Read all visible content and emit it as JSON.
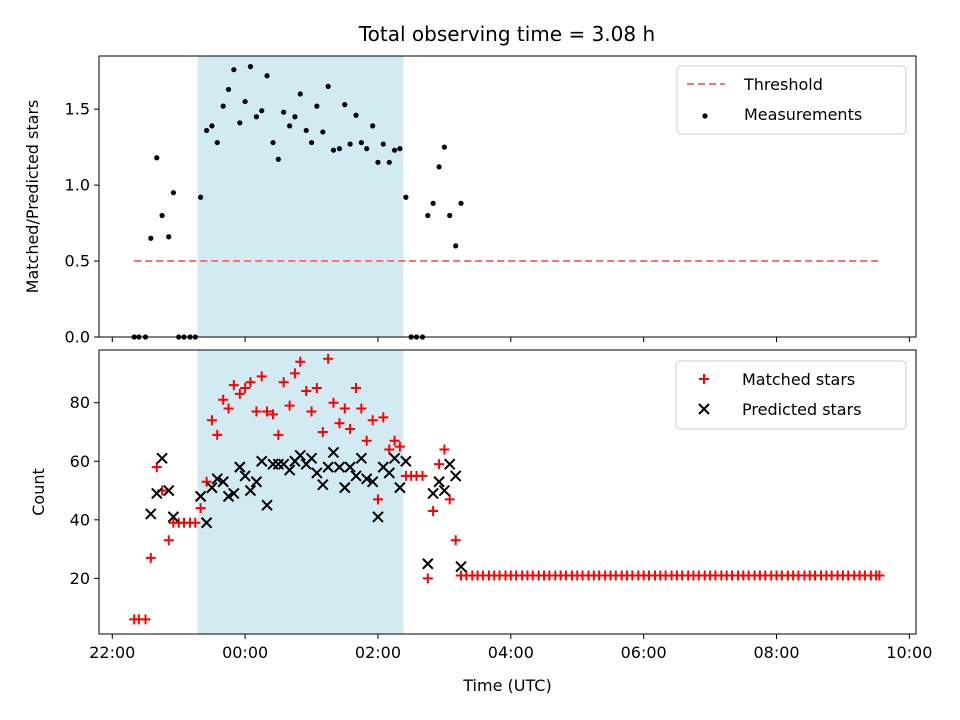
{
  "figure_title": "Total observing time = 3.08 h",
  "colors": {
    "shade": "#add8e6",
    "threshold": "#ff6f6f",
    "measurements": "#000000",
    "matched": "#ff0000",
    "predicted": "#000000"
  },
  "chart_data": [
    {
      "type": "scatter",
      "title": "Total observing time = 3.08 h",
      "xlabel": "",
      "ylabel": "Matched/Predicted stars",
      "x_unit": "hours since 22:00 UTC",
      "xlim": [
        -0.2,
        12.1
      ],
      "ylim": [
        0,
        1.85
      ],
      "yticks": [
        0.0,
        0.5,
        1.0,
        1.5
      ],
      "ytick_labels": [
        "0.0",
        "0.5",
        "1.0",
        "1.5"
      ],
      "grid": false,
      "legend": "top-right",
      "shaded_span": {
        "start": "23:17",
        "end": "02:23"
      },
      "series": [
        {
          "name": "Threshold",
          "style": "dashed-line",
          "x": [
            0.33,
            11.55
          ],
          "y": [
            0.5,
            0.5
          ]
        },
        {
          "name": "Measurements",
          "style": "dot",
          "points": [
            [
              0.33,
              0
            ],
            [
              0.4,
              0
            ],
            [
              0.5,
              0
            ],
            [
              0.58,
              0.65
            ],
            [
              0.67,
              1.18
            ],
            [
              0.75,
              0.8
            ],
            [
              0.85,
              0.66
            ],
            [
              0.92,
              0.95
            ],
            [
              1.0,
              0
            ],
            [
              1.08,
              0
            ],
            [
              1.17,
              0
            ],
            [
              1.25,
              0
            ],
            [
              1.33,
              0.92
            ],
            [
              1.42,
              1.36
            ],
            [
              1.5,
              1.39
            ],
            [
              1.58,
              1.28
            ],
            [
              1.67,
              1.52
            ],
            [
              1.75,
              1.63
            ],
            [
              1.83,
              1.76
            ],
            [
              1.92,
              1.41
            ],
            [
              2.0,
              1.55
            ],
            [
              2.08,
              1.78
            ],
            [
              2.17,
              1.45
            ],
            [
              2.25,
              1.49
            ],
            [
              2.33,
              1.72
            ],
            [
              2.42,
              1.28
            ],
            [
              2.5,
              1.17
            ],
            [
              2.58,
              1.48
            ],
            [
              2.67,
              1.39
            ],
            [
              2.75,
              1.45
            ],
            [
              2.83,
              1.6
            ],
            [
              2.92,
              1.36
            ],
            [
              3.0,
              1.28
            ],
            [
              3.08,
              1.52
            ],
            [
              3.17,
              1.35
            ],
            [
              3.25,
              1.65
            ],
            [
              3.33,
              1.23
            ],
            [
              3.42,
              1.24
            ],
            [
              3.5,
              1.53
            ],
            [
              3.58,
              1.27
            ],
            [
              3.67,
              1.46
            ],
            [
              3.75,
              1.28
            ],
            [
              3.83,
              1.24
            ],
            [
              3.92,
              1.39
            ],
            [
              4.0,
              1.15
            ],
            [
              4.08,
              1.27
            ],
            [
              4.17,
              1.15
            ],
            [
              4.25,
              1.23
            ],
            [
              4.33,
              1.24
            ],
            [
              4.42,
              0.92
            ],
            [
              4.5,
              0
            ],
            [
              4.58,
              0
            ],
            [
              4.67,
              0
            ],
            [
              4.75,
              0.8
            ],
            [
              4.83,
              0.88
            ],
            [
              4.92,
              1.12
            ],
            [
              5.0,
              1.25
            ],
            [
              5.08,
              0.8
            ],
            [
              5.17,
              0.6
            ],
            [
              5.25,
              0.88
            ]
          ]
        }
      ]
    },
    {
      "type": "scatter",
      "title": "",
      "xlabel": "Time (UTC)",
      "ylabel": "Count",
      "x_unit": "hours since 22:00 UTC",
      "xlim": [
        -0.2,
        12.1
      ],
      "ylim": [
        1,
        98
      ],
      "yticks": [
        20,
        40,
        60,
        80
      ],
      "ytick_labels": [
        "20",
        "40",
        "60",
        "80"
      ],
      "xtick_labels": [
        "22:00",
        "00:00",
        "02:00",
        "04:00",
        "06:00",
        "08:00",
        "10:00"
      ],
      "grid": false,
      "legend": "top-right",
      "shaded_span": {
        "start": "23:17",
        "end": "02:23"
      },
      "series": [
        {
          "name": "Matched stars",
          "marker": "plus",
          "points": [
            [
              0.33,
              6
            ],
            [
              0.4,
              6
            ],
            [
              0.5,
              6
            ],
            [
              0.58,
              27
            ],
            [
              0.67,
              58
            ],
            [
              0.75,
              50
            ],
            [
              0.85,
              33
            ],
            [
              0.92,
              39
            ],
            [
              1.0,
              39
            ],
            [
              1.08,
              39
            ],
            [
              1.17,
              39
            ],
            [
              1.25,
              39
            ],
            [
              1.33,
              44
            ],
            [
              1.42,
              53
            ],
            [
              1.5,
              74
            ],
            [
              1.58,
              69
            ],
            [
              1.67,
              81
            ],
            [
              1.75,
              78
            ],
            [
              1.83,
              86
            ],
            [
              1.92,
              83
            ],
            [
              2.0,
              85
            ],
            [
              2.08,
              87
            ],
            [
              2.17,
              77
            ],
            [
              2.25,
              89
            ],
            [
              2.33,
              77
            ],
            [
              2.42,
              76
            ],
            [
              2.5,
              69
            ],
            [
              2.58,
              87
            ],
            [
              2.67,
              79
            ],
            [
              2.75,
              90
            ],
            [
              2.83,
              94
            ],
            [
              2.92,
              84
            ],
            [
              3.0,
              77
            ],
            [
              3.08,
              85
            ],
            [
              3.17,
              70
            ],
            [
              3.25,
              95
            ],
            [
              3.33,
              80
            ],
            [
              3.42,
              73
            ],
            [
              3.5,
              78
            ],
            [
              3.58,
              71
            ],
            [
              3.67,
              85
            ],
            [
              3.75,
              78
            ],
            [
              3.83,
              67
            ],
            [
              3.92,
              74
            ],
            [
              4.0,
              47
            ],
            [
              4.08,
              75
            ],
            [
              4.17,
              64
            ],
            [
              4.25,
              67
            ],
            [
              4.33,
              65
            ],
            [
              4.42,
              55
            ],
            [
              4.5,
              55
            ],
            [
              4.58,
              55
            ],
            [
              4.67,
              55
            ],
            [
              4.75,
              20
            ],
            [
              4.83,
              43
            ],
            [
              4.92,
              59
            ],
            [
              5.0,
              64
            ],
            [
              5.08,
              47
            ],
            [
              5.17,
              33
            ],
            [
              5.25,
              21
            ],
            [
              5.33,
              21
            ],
            [
              5.42,
              21
            ],
            [
              5.5,
              21
            ],
            [
              5.58,
              21
            ],
            [
              5.67,
              21
            ],
            [
              5.75,
              21
            ],
            [
              5.83,
              21
            ],
            [
              5.92,
              21
            ],
            [
              6.0,
              21
            ],
            [
              6.08,
              21
            ],
            [
              6.17,
              21
            ],
            [
              6.25,
              21
            ],
            [
              6.33,
              21
            ],
            [
              6.42,
              21
            ],
            [
              6.5,
              21
            ],
            [
              6.58,
              21
            ],
            [
              6.67,
              21
            ],
            [
              6.75,
              21
            ],
            [
              6.83,
              21
            ],
            [
              6.92,
              21
            ],
            [
              7.0,
              21
            ],
            [
              7.08,
              21
            ],
            [
              7.17,
              21
            ],
            [
              7.25,
              21
            ],
            [
              7.33,
              21
            ],
            [
              7.42,
              21
            ],
            [
              7.5,
              21
            ],
            [
              7.58,
              21
            ],
            [
              7.67,
              21
            ],
            [
              7.75,
              21
            ],
            [
              7.83,
              21
            ],
            [
              7.92,
              21
            ],
            [
              8.0,
              21
            ],
            [
              8.08,
              21
            ],
            [
              8.17,
              21
            ],
            [
              8.25,
              21
            ],
            [
              8.33,
              21
            ],
            [
              8.42,
              21
            ],
            [
              8.5,
              21
            ],
            [
              8.58,
              21
            ],
            [
              8.67,
              21
            ],
            [
              8.75,
              21
            ],
            [
              8.83,
              21
            ],
            [
              8.92,
              21
            ],
            [
              9.0,
              21
            ],
            [
              9.08,
              21
            ],
            [
              9.17,
              21
            ],
            [
              9.25,
              21
            ],
            [
              9.33,
              21
            ],
            [
              9.42,
              21
            ],
            [
              9.5,
              21
            ],
            [
              9.58,
              21
            ],
            [
              9.67,
              21
            ],
            [
              9.75,
              21
            ],
            [
              9.83,
              21
            ],
            [
              9.92,
              21
            ],
            [
              10.0,
              21
            ],
            [
              10.08,
              21
            ],
            [
              10.17,
              21
            ],
            [
              10.25,
              21
            ],
            [
              10.33,
              21
            ],
            [
              10.42,
              21
            ],
            [
              10.5,
              21
            ],
            [
              10.58,
              21
            ],
            [
              10.67,
              21
            ],
            [
              10.75,
              21
            ],
            [
              10.83,
              21
            ],
            [
              10.92,
              21
            ],
            [
              11.0,
              21
            ],
            [
              11.08,
              21
            ],
            [
              11.17,
              21
            ],
            [
              11.25,
              21
            ],
            [
              11.33,
              21
            ],
            [
              11.42,
              21
            ],
            [
              11.5,
              21
            ],
            [
              11.55,
              21
            ]
          ]
        },
        {
          "name": "Predicted stars",
          "marker": "x",
          "points": [
            [
              0.58,
              42
            ],
            [
              0.67,
              49
            ],
            [
              0.75,
              61
            ],
            [
              0.85,
              50
            ],
            [
              0.92,
              41
            ],
            [
              1.33,
              48
            ],
            [
              1.42,
              39
            ],
            [
              1.5,
              51
            ],
            [
              1.58,
              54
            ],
            [
              1.67,
              53
            ],
            [
              1.75,
              48
            ],
            [
              1.83,
              49
            ],
            [
              1.92,
              58
            ],
            [
              2.0,
              55
            ],
            [
              2.08,
              50
            ],
            [
              2.17,
              53
            ],
            [
              2.25,
              60
            ],
            [
              2.33,
              45
            ],
            [
              2.42,
              59
            ],
            [
              2.5,
              59
            ],
            [
              2.58,
              59
            ],
            [
              2.67,
              57
            ],
            [
              2.75,
              60
            ],
            [
              2.83,
              62
            ],
            [
              2.92,
              59
            ],
            [
              3.0,
              61
            ],
            [
              3.08,
              56
            ],
            [
              3.17,
              52
            ],
            [
              3.25,
              58
            ],
            [
              3.33,
              63
            ],
            [
              3.42,
              58
            ],
            [
              3.5,
              51
            ],
            [
              3.58,
              58
            ],
            [
              3.67,
              55
            ],
            [
              3.75,
              61
            ],
            [
              3.83,
              54
            ],
            [
              3.92,
              53
            ],
            [
              4.0,
              41
            ],
            [
              4.08,
              58
            ],
            [
              4.17,
              56
            ],
            [
              4.25,
              61
            ],
            [
              4.33,
              51
            ],
            [
              4.42,
              60
            ],
            [
              4.75,
              25
            ],
            [
              4.83,
              49
            ],
            [
              4.92,
              53
            ],
            [
              5.0,
              50
            ],
            [
              5.08,
              59
            ],
            [
              5.17,
              55
            ],
            [
              5.25,
              24
            ]
          ]
        }
      ]
    }
  ]
}
